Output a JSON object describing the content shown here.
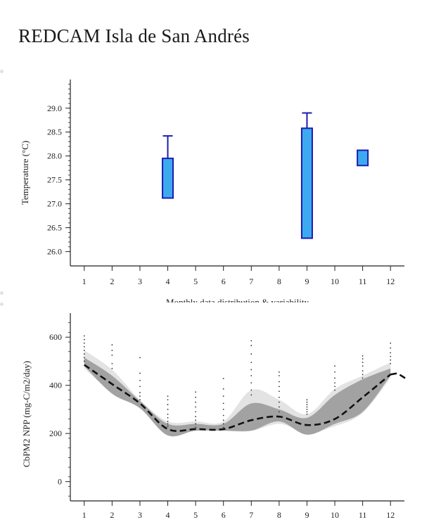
{
  "page": {
    "title": "REDCAM Isla de San Andrés"
  },
  "chart_data": [
    {
      "type": "boxplot",
      "ylabel": "Temperature (°C)",
      "xlabel": "Monthly data distribution & variability",
      "ylim": [
        25.7,
        29.6
      ],
      "xlim": [
        0.5,
        12.5
      ],
      "x_ticks": [
        "1",
        "2",
        "3",
        "4",
        "5",
        "6",
        "7",
        "8",
        "9",
        "10",
        "11",
        "12"
      ],
      "y_ticks": [
        "26.0",
        "26.5",
        "27.0",
        "27.5",
        "28.0",
        "28.5",
        "29.0"
      ],
      "box_color": "#3daaf0",
      "edge_color": "#1b1bb0",
      "boxes": [
        {
          "month": 4,
          "q1": 27.12,
          "q3": 27.95,
          "whisker_high": 28.42
        },
        {
          "month": 9,
          "q1": 26.28,
          "q3": 28.58,
          "whisker_high": 28.9
        },
        {
          "month": 11,
          "q1": 27.8,
          "q3": 28.12
        }
      ]
    },
    {
      "type": "area",
      "ylabel": "CbPM2 NPP (mg-C/m2/day)",
      "xlabel": "",
      "ylim": [
        -80,
        700
      ],
      "xlim": [
        0.5,
        12.5
      ],
      "x_ticks": [
        "1",
        "2",
        "3",
        "4",
        "5",
        "6",
        "7",
        "8",
        "9",
        "10",
        "11",
        "12"
      ],
      "y_ticks": [
        "0",
        "200",
        "400",
        "600"
      ],
      "x": [
        1,
        2,
        3,
        4,
        5,
        6,
        7,
        8,
        9,
        10,
        11,
        12
      ],
      "median": [
        485,
        405,
        325,
        218,
        218,
        218,
        255,
        270,
        235,
        260,
        350,
        445
      ],
      "median_tail": [
        [
          12.0,
          445
        ],
        [
          12.25,
          450
        ],
        [
          12.55,
          428
        ]
      ],
      "light_band": {
        "upper": [
          545,
          465,
          340,
          250,
          250,
          250,
          380,
          340,
          280,
          385,
          440,
          495
        ],
        "lower": [
          470,
          370,
          305,
          200,
          210,
          210,
          210,
          240,
          205,
          230,
          285,
          430
        ]
      },
      "dark_band": {
        "upper": [
          515,
          440,
          335,
          240,
          240,
          240,
          325,
          300,
          265,
          360,
          425,
          470
        ],
        "lower": [
          480,
          365,
          305,
          192,
          212,
          212,
          212,
          250,
          195,
          240,
          290,
          440
        ]
      },
      "light_color": "#e3e3e3",
      "dark_color": "#a2a2a2",
      "line_color": "#111111",
      "samples": [
        [
          1,
          [
            500,
            515,
            530,
            545,
            560,
            575,
            590,
            605
          ]
        ],
        [
          2,
          [
            470,
            490,
            525,
            545,
            568
          ]
        ],
        [
          3,
          [
            340,
            355,
            370,
            395,
            420,
            450,
            515
          ]
        ],
        [
          4,
          [
            230,
            240,
            250,
            265,
            280,
            300,
            320,
            340,
            355
          ]
        ],
        [
          5,
          [
            225,
            240,
            255,
            270,
            290,
            310,
            330,
            350,
            372
          ]
        ],
        [
          6,
          [
            225,
            240,
            255,
            275,
            300,
            325,
            355,
            385,
            428
          ]
        ],
        [
          7,
          [
            360,
            380,
            410,
            440,
            465,
            495,
            530,
            565,
            585
          ]
        ],
        [
          8,
          [
            290,
            310,
            330,
            350,
            375,
            395,
            415,
            440,
            455
          ]
        ],
        [
          9,
          [
            280,
            290,
            300,
            310,
            320,
            330,
            340
          ]
        ],
        [
          10,
          [
            380,
            395,
            410,
            430,
            455,
            480
          ]
        ],
        [
          11,
          [
            430,
            445,
            460,
            480,
            495,
            510,
            522
          ]
        ],
        [
          12,
          [
            490,
            505,
            520,
            535,
            555,
            575
          ]
        ]
      ]
    }
  ]
}
